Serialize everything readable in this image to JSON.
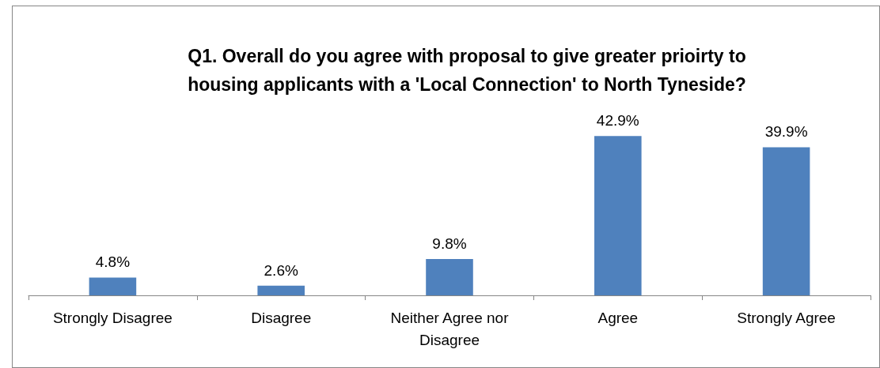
{
  "chart_data": {
    "type": "bar",
    "title": "Q1. Overall do you agree with proposal to give greater prioirty to\nhousing applicants with a 'Local Connection' to North Tyneside?",
    "categories": [
      "Strongly Disagree",
      "Disagree",
      "Neither Agree nor\nDisagree",
      "Agree",
      "Strongly Agree"
    ],
    "values": [
      4.8,
      2.6,
      9.8,
      42.9,
      39.9
    ],
    "value_labels": [
      "4.8%",
      "2.6%",
      "9.8%",
      "42.9%",
      "39.9%"
    ],
    "color": "#4f81bd"
  }
}
